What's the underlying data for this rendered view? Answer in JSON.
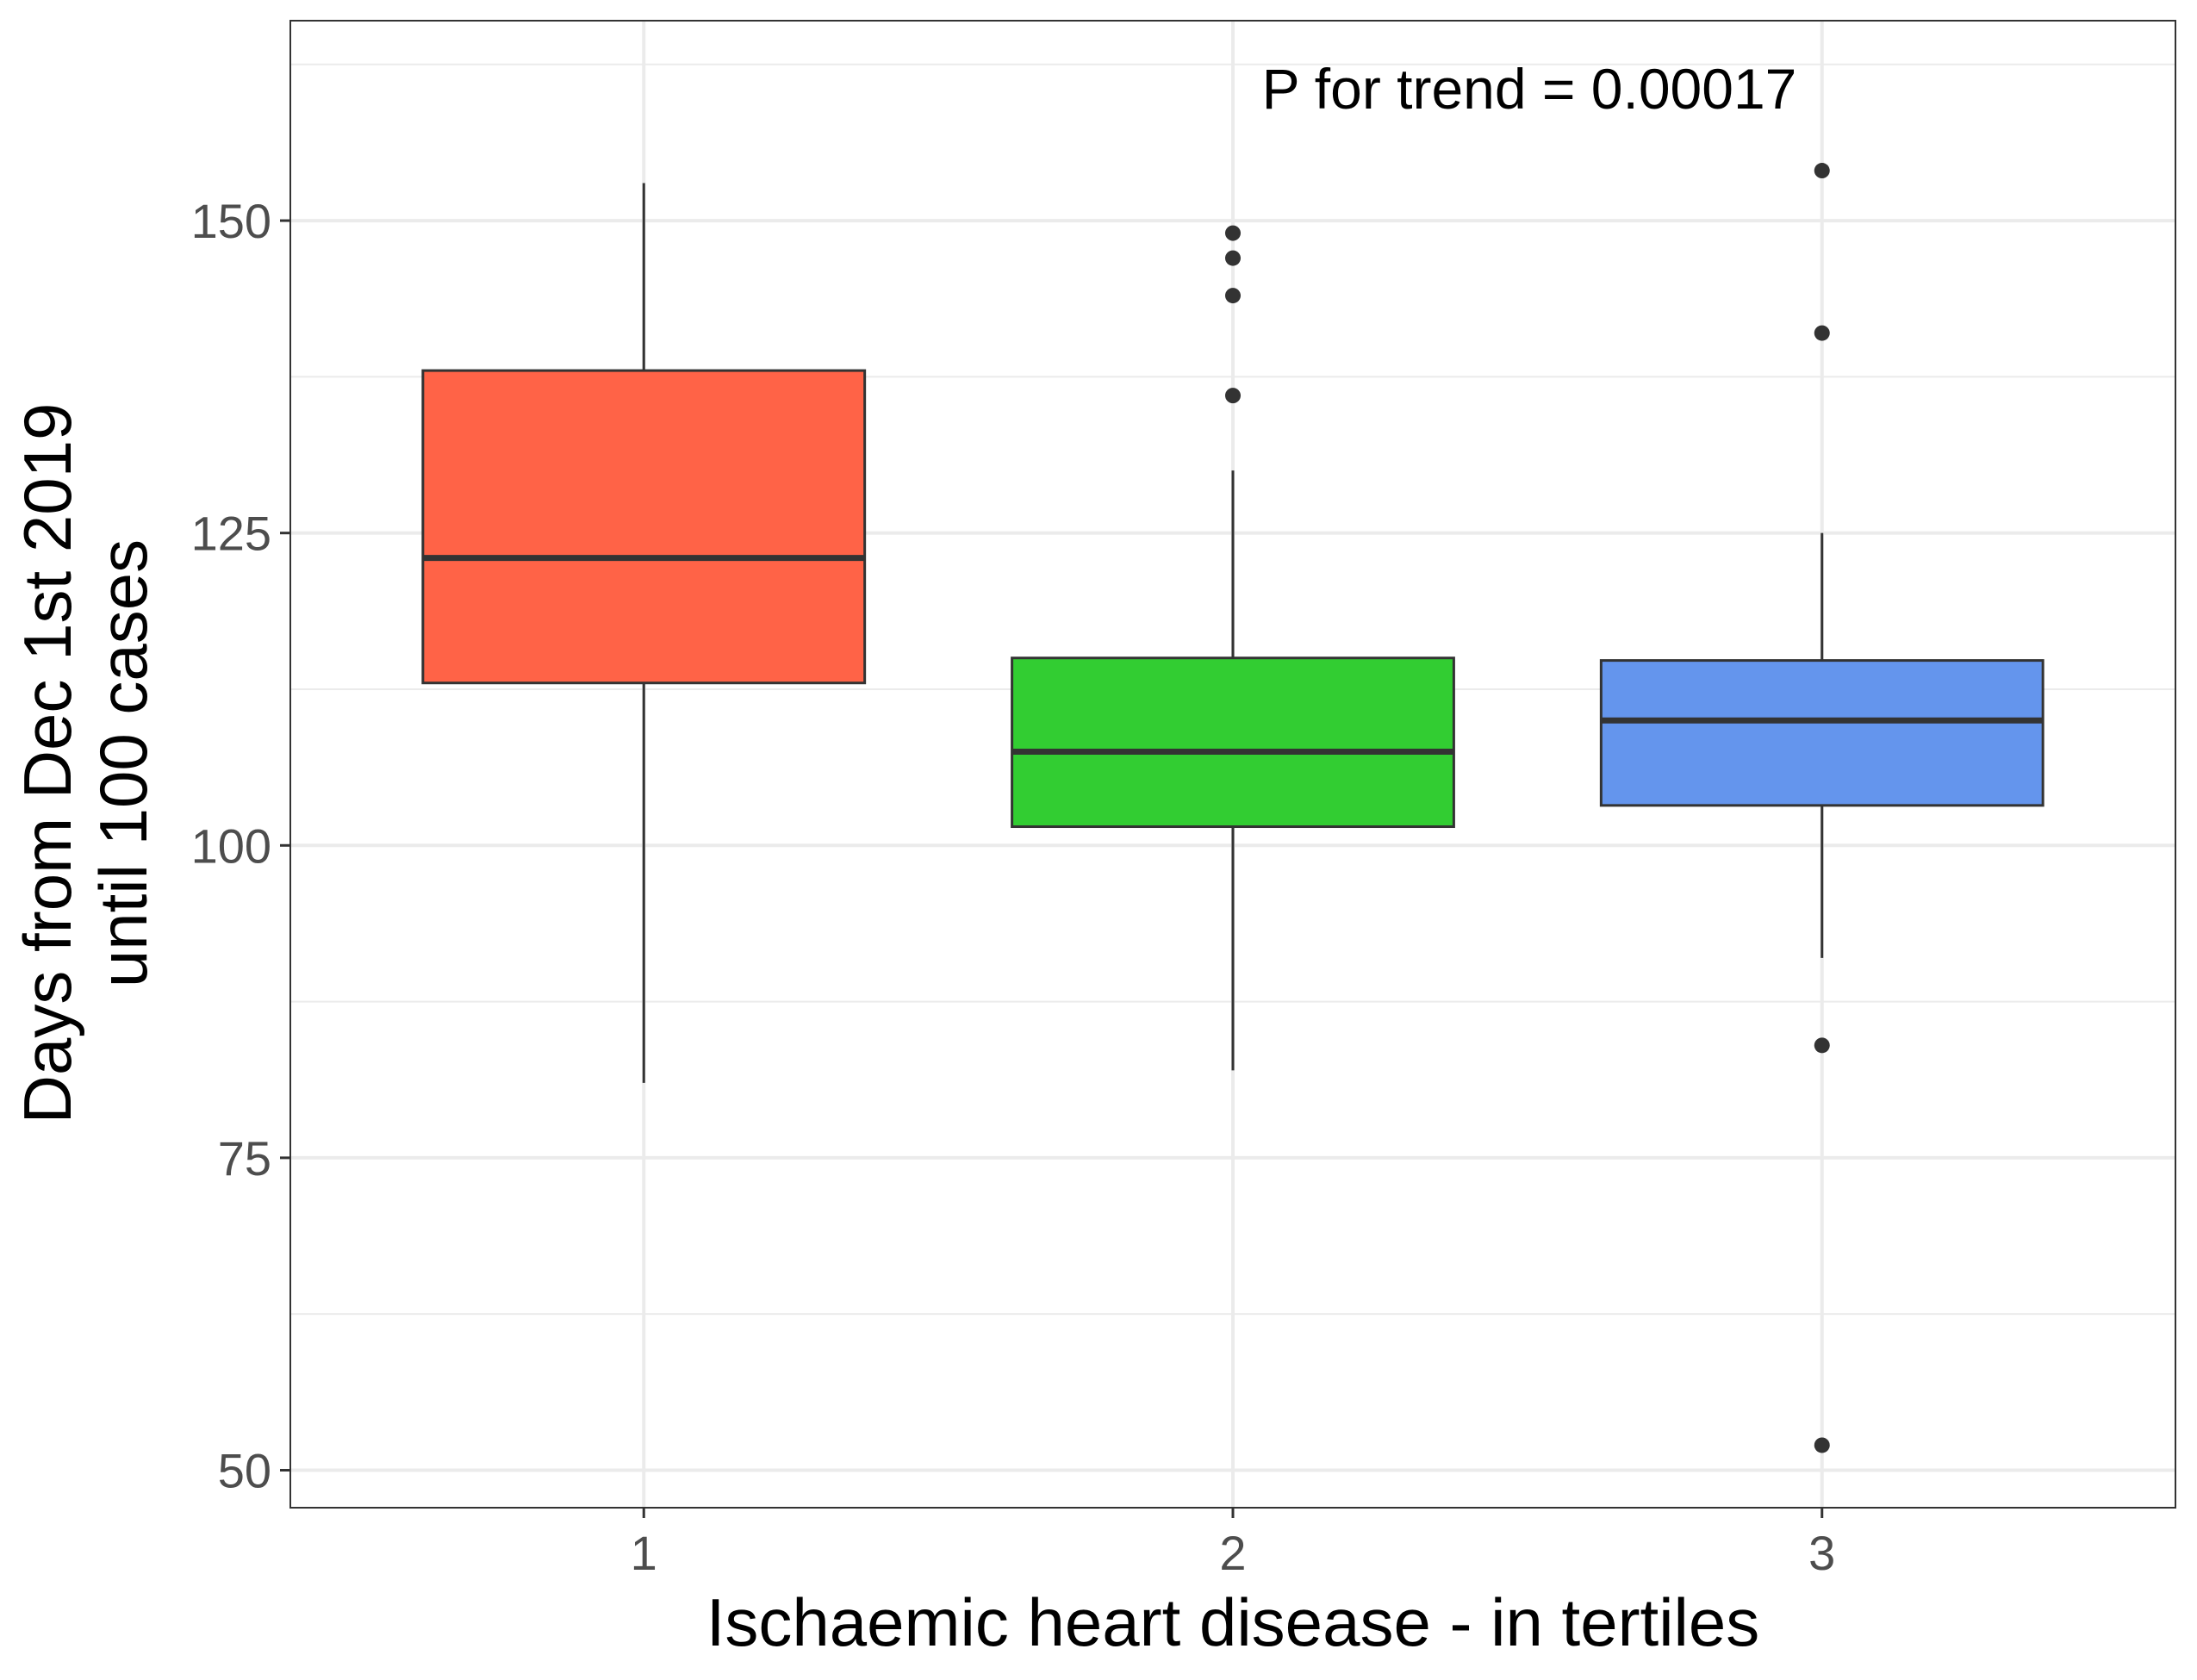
{
  "chart_data": {
    "type": "box",
    "xlabel": "Ischaemic heart disease - in tertiles",
    "ylabel_lines": [
      "Days from Dec 1st 2019",
      "until 100 cases"
    ],
    "annotation": "P for trend = 0.00017",
    "ylim": [
      47,
      166
    ],
    "y_ticks": [
      50,
      75,
      100,
      125,
      150
    ],
    "y_minor_ticks": [
      62.5,
      87.5,
      112.5,
      137.5,
      162.5
    ],
    "grid": true,
    "categories": [
      "1",
      "2",
      "3"
    ],
    "boxes": [
      {
        "category": "1",
        "whisker_low": 81,
        "q1": 113,
        "median": 123,
        "q3": 138,
        "whisker_high": 153,
        "outliers": [],
        "color": "#FF6347"
      },
      {
        "category": "2",
        "whisker_low": 82,
        "q1": 101.5,
        "median": 107.5,
        "q3": 115,
        "whisker_high": 130,
        "outliers": [
          136,
          144,
          147,
          149
        ],
        "color": "#32CD32"
      },
      {
        "category": "3",
        "whisker_low": 91,
        "q1": 103.2,
        "median": 110,
        "q3": 114.8,
        "whisker_high": 125,
        "outliers": [
          52,
          84,
          141,
          154
        ],
        "color": "#6495ED"
      }
    ]
  }
}
